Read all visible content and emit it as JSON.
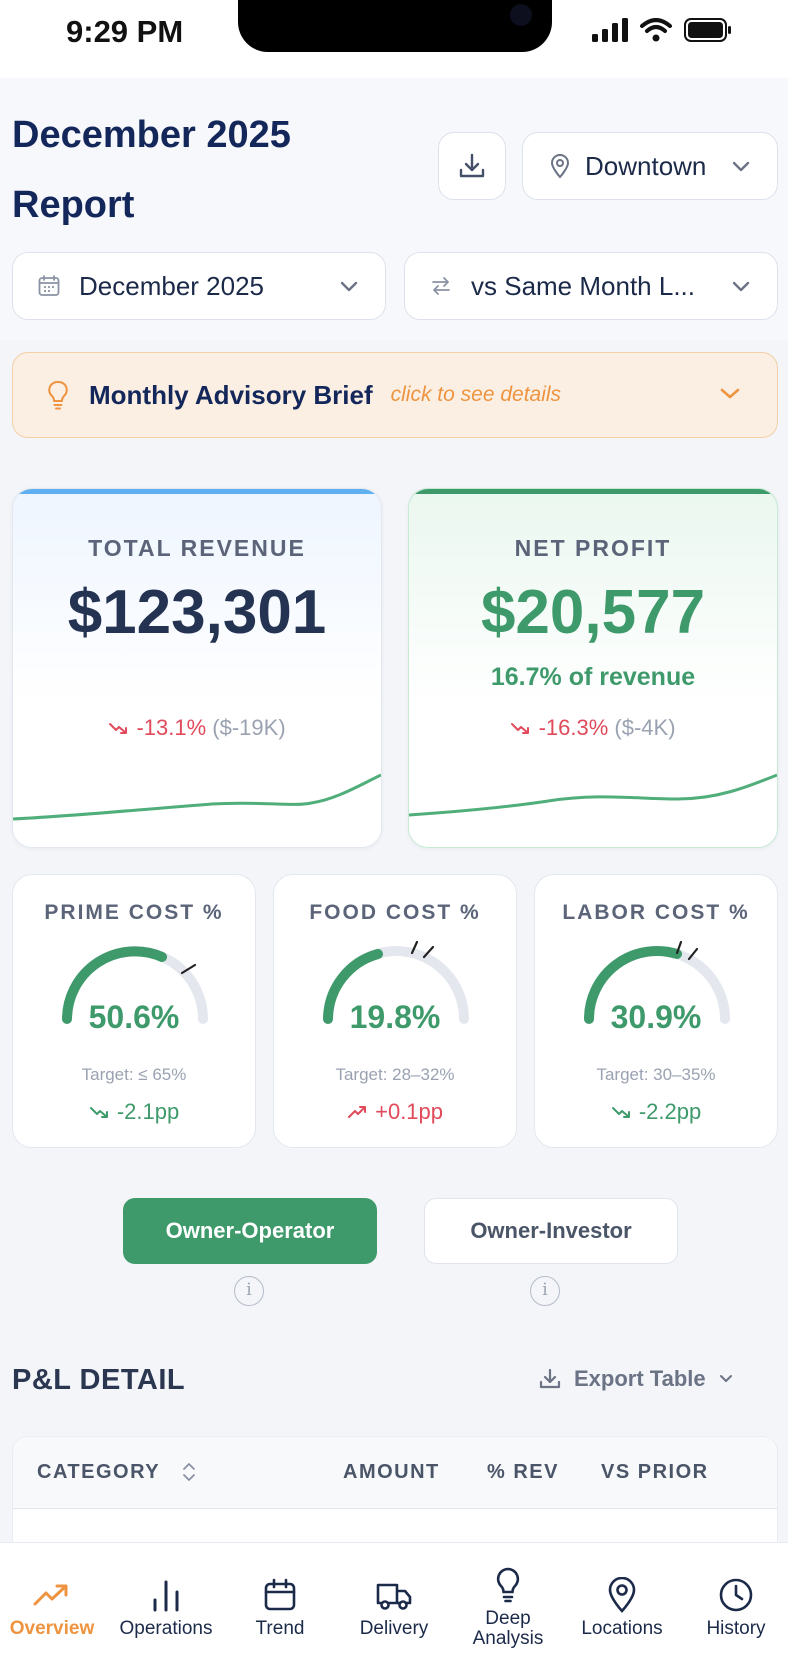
{
  "status_bar": {
    "time": "9:29 PM"
  },
  "header": {
    "title": "December 2025 Report",
    "location": "Downtown",
    "date": "December 2025",
    "comparison": "vs Same Month L..."
  },
  "advisory": {
    "title": "Monthly Advisory Brief",
    "hint": "click to see details"
  },
  "kpis": {
    "revenue": {
      "label": "TOTAL REVENUE",
      "value": "$123,301",
      "delta_pct": "-13.1%",
      "delta_abs": "($-19K)"
    },
    "net_profit": {
      "label": "NET PROFIT",
      "value": "$20,577",
      "subtitle": "16.7% of revenue",
      "delta_pct": "-16.3%",
      "delta_abs": "($-4K)"
    }
  },
  "gauges": [
    {
      "label": "PRIME COST %",
      "value": "50.6%",
      "level": 0.506,
      "target": "Target: ≤ 65%",
      "delta": "-2.1pp",
      "trend": "down"
    },
    {
      "label": "FOOD COST %",
      "value": "19.8%",
      "level": 0.198,
      "target": "Target: 28–32%",
      "delta": "+0.1pp",
      "trend": "up"
    },
    {
      "label": "LABOR COST %",
      "value": "30.9%",
      "level": 0.309,
      "target": "Target: 30–35%",
      "delta": "-2.2pp",
      "trend": "down"
    }
  ],
  "modes": {
    "operator": "Owner-Operator",
    "investor": "Owner-Investor",
    "info": "i"
  },
  "pl": {
    "title": "P&L DETAIL",
    "export": "Export Table",
    "columns": [
      "CATEGORY",
      "AMOUNT",
      "% REV",
      "VS PRIOR"
    ]
  },
  "nav": [
    {
      "label": "Overview",
      "icon": "trending-up-icon"
    },
    {
      "label": "Operations",
      "icon": "bar-chart-icon"
    },
    {
      "label": "Trend",
      "icon": "calendar-icon"
    },
    {
      "label": "Delivery",
      "icon": "truck-icon"
    },
    {
      "label": "Deep Analysis",
      "icon": "lightbulb-icon"
    },
    {
      "label": "Locations",
      "icon": "map-pin-icon"
    },
    {
      "label": "History",
      "icon": "clock-icon"
    }
  ],
  "colors": {
    "accent_green": "#3f9a6b",
    "accent_orange": "#ee9440",
    "negative": "#e04a5a",
    "revenue_bar": "#5fb0f0",
    "navy": "#13275a"
  }
}
